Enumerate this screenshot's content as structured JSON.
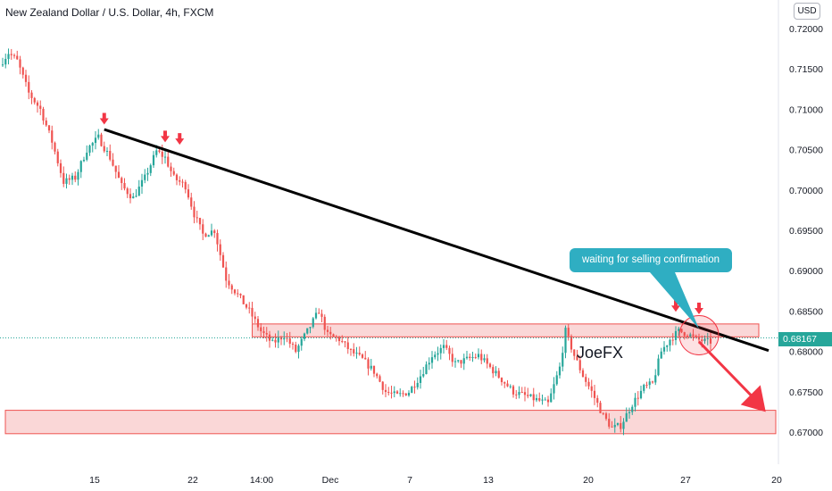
{
  "header": {
    "title": "New Zealand Dollar / U.S. Dollar, 4h, FXCM",
    "currency": "USD"
  },
  "colors": {
    "up": "#26a69a",
    "down": "#ef5350",
    "zone_fill": "#f8c9c9",
    "zone_stroke": "#ef5350",
    "trendline": "#000000",
    "arrow": "#f23645",
    "callout": "#2faec2",
    "price_line": "#26a69a"
  },
  "annotations": {
    "callout_text": "waiting for selling confirmation",
    "watermark": "JoeFX",
    "current_price": "0.68167"
  },
  "chart_data": {
    "type": "candlestick",
    "symbol": "NZDUSD",
    "timeframe": "4h",
    "ylim": [
      0.668,
      0.7225
    ],
    "yticks": [
      "0.72000",
      "0.71500",
      "0.71000",
      "0.70500",
      "0.70000",
      "0.69500",
      "0.69000",
      "0.68500",
      "0.68000",
      "0.67500",
      "0.67000"
    ],
    "xticks": [
      "15",
      "22",
      "14:00",
      "Dec",
      "7",
      "13",
      "20",
      "27",
      "20"
    ],
    "grid": false,
    "anchors": [
      [
        0,
        0.7155
      ],
      [
        3,
        0.717
      ],
      [
        6,
        0.716
      ],
      [
        10,
        0.712
      ],
      [
        14,
        0.71
      ],
      [
        18,
        0.706
      ],
      [
        22,
        0.701
      ],
      [
        26,
        0.7015
      ],
      [
        30,
        0.705
      ],
      [
        34,
        0.7065
      ],
      [
        38,
        0.704
      ],
      [
        42,
        0.7005
      ],
      [
        46,
        0.699
      ],
      [
        50,
        0.7015
      ],
      [
        54,
        0.7048
      ],
      [
        57,
        0.704
      ],
      [
        60,
        0.7015
      ],
      [
        64,
        0.7005
      ],
      [
        67,
        0.697
      ],
      [
        70,
        0.6945
      ],
      [
        74,
        0.695
      ],
      [
        78,
        0.689
      ],
      [
        82,
        0.687
      ],
      [
        86,
        0.685
      ],
      [
        90,
        0.6825
      ],
      [
        94,
        0.681
      ],
      [
        98,
        0.682
      ],
      [
        102,
        0.68
      ],
      [
        106,
        0.6825
      ],
      [
        110,
        0.685
      ],
      [
        113,
        0.682
      ],
      [
        117,
        0.6815
      ],
      [
        121,
        0.68
      ],
      [
        125,
        0.679
      ],
      [
        129,
        0.6775
      ],
      [
        133,
        0.675
      ],
      [
        137,
        0.6745
      ],
      [
        141,
        0.675
      ],
      [
        145,
        0.677
      ],
      [
        149,
        0.6795
      ],
      [
        153,
        0.6805
      ],
      [
        157,
        0.6785
      ],
      [
        161,
        0.679
      ],
      [
        165,
        0.6795
      ],
      [
        169,
        0.678
      ],
      [
        173,
        0.6765
      ],
      [
        177,
        0.675
      ],
      [
        181,
        0.6745
      ],
      [
        185,
        0.674
      ],
      [
        189,
        0.6735
      ],
      [
        193,
        0.678
      ],
      [
        195,
        0.6825
      ],
      [
        198,
        0.6795
      ],
      [
        201,
        0.677
      ],
      [
        204,
        0.675
      ],
      [
        208,
        0.672
      ],
      [
        211,
        0.6705
      ],
      [
        214,
        0.6708
      ],
      [
        218,
        0.6735
      ],
      [
        222,
        0.6755
      ],
      [
        225,
        0.676
      ],
      [
        228,
        0.68
      ],
      [
        231,
        0.6815
      ],
      [
        234,
        0.6825
      ],
      [
        237,
        0.6822
      ],
      [
        240,
        0.6815
      ],
      [
        244,
        0.6812
      ]
    ],
    "resistance_zone": [
      0.6818,
      0.6834
    ],
    "support_zone": [
      0.6698,
      0.6727
    ],
    "trendline": [
      [
        35,
        0.7075
      ],
      [
        264,
        0.6801
      ]
    ],
    "marked_highs": [
      [
        35,
        0.707
      ],
      [
        56,
        0.7048
      ],
      [
        61,
        0.7045
      ],
      [
        232,
        0.6838
      ],
      [
        240,
        0.6835
      ]
    ],
    "projection": [
      [
        240,
        0.6812
      ],
      [
        263,
        0.6725
      ]
    ],
    "current_price": 0.68167,
    "bars_visible": 280
  }
}
